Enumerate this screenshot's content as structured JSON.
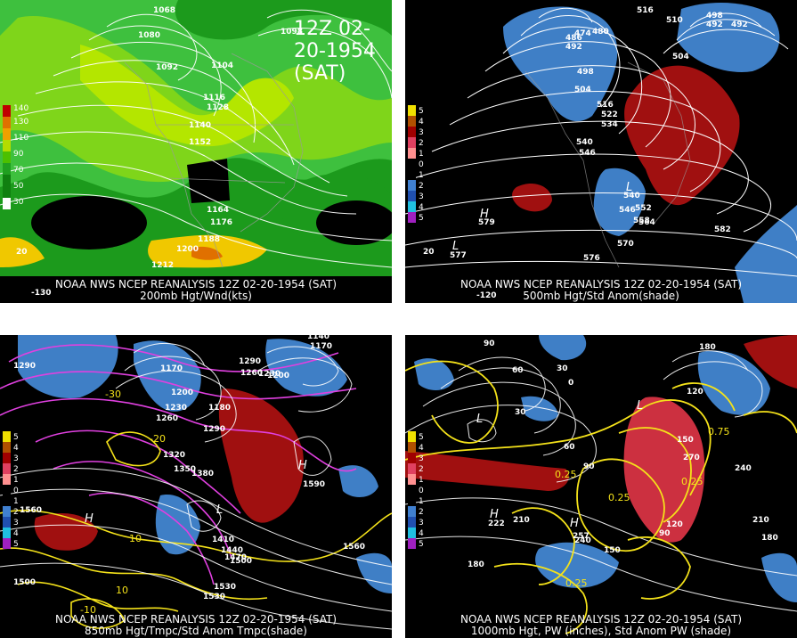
{
  "title": "12Z 02-20-1954 (SAT)",
  "panels": [
    {
      "id": "200mb",
      "caption_line1": "NOAA NWS NCEP REANALYSIS 12Z 02-20-1954 (SAT)",
      "caption_line2": "200mb Hgt/Wnd(kts)",
      "legend": [
        "140",
        "130",
        "110",
        "90",
        "70",
        "50",
        "30"
      ],
      "legend_colors": [
        "#c00000",
        "#e07000",
        "#f0a000",
        "#b4dc00",
        "#4cc000",
        "#20a020",
        "#108010"
      ],
      "contour_labels": [
        "1068",
        "1080",
        "1092",
        "1104",
        "1116",
        "1128",
        "1140",
        "1152",
        "1164",
        "1176",
        "1188",
        "1200",
        "1212",
        "1098",
        "-130",
        "20"
      ]
    },
    {
      "id": "500mb",
      "caption_line1": "NOAA NWS NCEP REANALYSIS 12Z 02-20-1954 (SAT)",
      "caption_line2": "500mb Hgt/Std Anom(shade)",
      "legend": [
        "5",
        "4",
        "3",
        "2",
        "1",
        "0",
        "1",
        "2",
        "3",
        "4",
        "5"
      ],
      "legend_colors": [
        "#f0e000",
        "#b05000",
        "#a00000",
        "#e04060",
        "#ff9090",
        "#000000",
        "#000000",
        "#4080d0",
        "#2050b0",
        "#20c0e0",
        "#a020c0"
      ],
      "contour_labels": [
        "516",
        "510",
        "498",
        "492",
        "486",
        "480",
        "474",
        "504",
        "498",
        "492",
        "516",
        "522",
        "534",
        "540",
        "546",
        "540",
        "546",
        "552",
        "558",
        "564",
        "570",
        "576",
        "582",
        "579",
        "577",
        "-120",
        "20"
      ]
    },
    {
      "id": "850mb",
      "caption_line1": "NOAA NWS NCEP REANALYSIS 12Z 02-20-1954 (SAT)",
      "caption_line2": "850mb Hgt/Tmpc/Std Anom Tmpc(shade)",
      "legend": [
        "5",
        "4",
        "3",
        "2",
        "1",
        "0",
        "1",
        "2",
        "3",
        "4",
        "5"
      ],
      "legend_colors": [
        "#f0e000",
        "#b05000",
        "#a00000",
        "#e04060",
        "#ff9090",
        "#000000",
        "#000000",
        "#4080d0",
        "#2050b0",
        "#20c0e0",
        "#a020c0"
      ],
      "contour_labels": [
        "1320",
        "1290",
        "1140",
        "1170",
        "1200",
        "1230",
        "1260",
        "1290",
        "1320",
        "1350",
        "1380",
        "1410",
        "1440",
        "1470",
        "1500",
        "1530",
        "1560",
        "1590",
        "1290",
        "1260",
        "1230",
        "1200",
        "1170",
        "1180",
        "1560",
        "1500",
        "1530",
        "10",
        "-10",
        "-20",
        "-30"
      ]
    },
    {
      "id": "1000mb",
      "caption_line1": "NOAA NWS NCEP REANALYSIS 12Z 02-20-1954 (SAT)",
      "caption_line2": "1000mb Hgt, PW (inches), Std Anom PW (shade)",
      "legend": [
        "5",
        "4",
        "3",
        "2",
        "1",
        "0",
        "1",
        "2",
        "3",
        "4",
        "5"
      ],
      "legend_colors": [
        "#f0e000",
        "#b05000",
        "#a00000",
        "#e04060",
        "#ff9090",
        "#000000",
        "#000000",
        "#4080d0",
        "#2050b0",
        "#20c0e0",
        "#a020c0"
      ],
      "contour_labels": [
        "90",
        "60",
        "30",
        "0",
        "30",
        "60",
        "90",
        "120",
        "150",
        "180",
        "210",
        "240",
        "270",
        "180",
        "150",
        "120",
        "90",
        "210",
        "240",
        "222",
        "257",
        "0.25",
        "0.75",
        "0.25",
        "0.25",
        "0.25",
        "180"
      ]
    }
  ]
}
